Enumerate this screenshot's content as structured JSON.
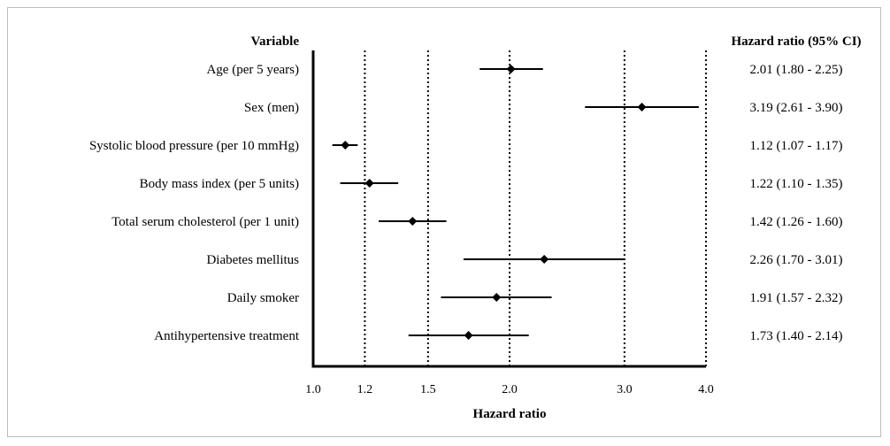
{
  "chart_data": {
    "type": "forest",
    "column_header_left": "Variable",
    "column_header_right": "Hazard ratio (95% CI)",
    "xlabel": "Hazard ratio",
    "x_scale": "log",
    "xlim": [
      1.0,
      4.0
    ],
    "x_ticks": [
      1.0,
      1.2,
      1.5,
      2.0,
      3.0,
      4.0
    ],
    "x_tick_labels": [
      "1.0",
      "1.2",
      "1.5",
      "2.0",
      "3.0",
      "4.0"
    ],
    "reference_lines": [
      1.2,
      1.5,
      2.0,
      3.0,
      4.0
    ],
    "rows": [
      {
        "label": "Age (per 5 years)",
        "hr": 2.01,
        "lo": 1.8,
        "hi": 2.25,
        "text": "2.01 (1.80 - 2.25)"
      },
      {
        "label": "Sex (men)",
        "hr": 3.19,
        "lo": 2.61,
        "hi": 3.9,
        "text": "3.19 (2.61 - 3.90)"
      },
      {
        "label": "Systolic blood pressure (per 10 mmHg)",
        "hr": 1.12,
        "lo": 1.07,
        "hi": 1.17,
        "text": "1.12 (1.07 - 1.17)"
      },
      {
        "label": "Body mass index (per 5 units)",
        "hr": 1.22,
        "lo": 1.1,
        "hi": 1.35,
        "text": "1.22 (1.10 - 1.35)"
      },
      {
        "label": "Total serum cholesterol (per 1 unit)",
        "hr": 1.42,
        "lo": 1.26,
        "hi": 1.6,
        "text": "1.42 (1.26 - 1.60)"
      },
      {
        "label": "Diabetes mellitus",
        "hr": 2.26,
        "lo": 1.7,
        "hi": 3.01,
        "text": "2.26 (1.70 - 3.01)"
      },
      {
        "label": "Daily smoker",
        "hr": 1.91,
        "lo": 1.57,
        "hi": 2.32,
        "text": "1.91 (1.57 - 2.32)"
      },
      {
        "label": "Antihypertensive treatment",
        "hr": 1.73,
        "lo": 1.4,
        "hi": 2.14,
        "text": "1.73 (1.40 - 2.14)"
      }
    ]
  }
}
